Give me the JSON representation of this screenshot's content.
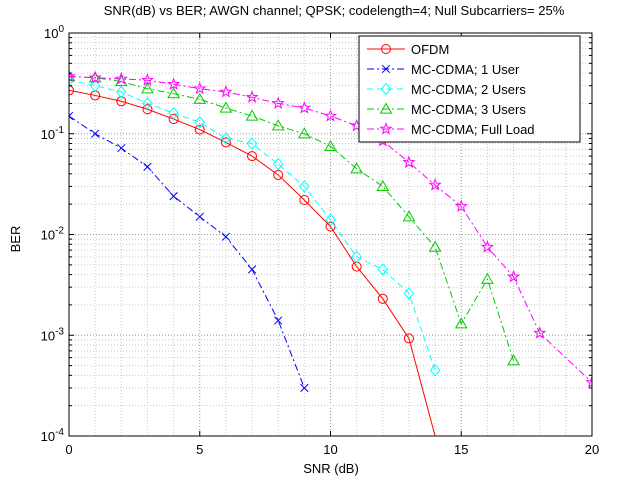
{
  "chart_data": {
    "type": "line",
    "title": "SNR(dB) vs BER; AWGN channel; QPSK; codelength=4; Null Subcarriers= 25%",
    "xlabel": "SNR (dB)",
    "ylabel": "BER",
    "xlim": [
      0,
      20
    ],
    "ylim": [
      0.0001,
      1
    ],
    "yscale": "log",
    "grid": true,
    "legend_position": "top-right",
    "x_ticks": [
      "0",
      "5",
      "10",
      "15",
      "20"
    ],
    "y_tick_bases": [
      "10",
      "10",
      "10",
      "10",
      "10"
    ],
    "y_tick_exponents": [
      "-4",
      "-3",
      "-2",
      "-1",
      "0"
    ],
    "series": [
      {
        "name": "OFDM",
        "color": "#ff0000",
        "dash": "solid",
        "marker": "circle",
        "x": [
          0,
          1,
          2,
          3,
          4,
          5,
          6,
          7,
          8,
          9,
          10,
          11,
          12,
          13,
          14
        ],
        "y": [
          0.27,
          0.24,
          0.21,
          0.175,
          0.14,
          0.11,
          0.082,
          0.06,
          0.039,
          0.022,
          0.012,
          0.0048,
          0.0023,
          0.00093,
          0.0001
        ]
      },
      {
        "name": "MC-CDMA; 1 User",
        "color": "#0000ff",
        "dash": "dashdot",
        "marker": "x",
        "x": [
          0,
          1,
          2,
          3,
          4,
          5,
          6,
          7,
          8,
          9
        ],
        "y": [
          0.15,
          0.1,
          0.072,
          0.047,
          0.024,
          0.015,
          0.0095,
          0.0045,
          0.0014,
          0.0003
        ]
      },
      {
        "name": "MC-CDMA; 2 Users",
        "color": "#00ffff",
        "dash": "dash",
        "marker": "diamond",
        "x": [
          0,
          1,
          2,
          3,
          4,
          5,
          6,
          7,
          8,
          9,
          10,
          11,
          12,
          13,
          14
        ],
        "y": [
          0.34,
          0.3,
          0.26,
          0.2,
          0.16,
          0.13,
          0.09,
          0.08,
          0.05,
          0.03,
          0.014,
          0.006,
          0.0045,
          0.0026,
          0.00045
        ]
      },
      {
        "name": "MC-CDMA; 3 Users",
        "color": "#00cc00",
        "dash": "dashdot",
        "marker": "triangle",
        "x": [
          0,
          1,
          2,
          3,
          4,
          5,
          6,
          7,
          8,
          9,
          10,
          11,
          12,
          13,
          14,
          15,
          16,
          17
        ],
        "y": [
          0.37,
          0.36,
          0.33,
          0.28,
          0.25,
          0.22,
          0.18,
          0.15,
          0.12,
          0.1,
          0.075,
          0.045,
          0.03,
          0.015,
          0.0075,
          0.0013,
          0.0036,
          0.00056
        ]
      },
      {
        "name": "MC-CDMA; Full Load",
        "color": "#ff00ff",
        "dash": "dashdot",
        "marker": "star",
        "x": [
          0,
          1,
          2,
          3,
          4,
          5,
          6,
          7,
          8,
          9,
          10,
          11,
          12,
          13,
          14,
          15,
          16,
          17,
          18,
          20
        ],
        "y": [
          0.37,
          0.36,
          0.35,
          0.34,
          0.31,
          0.28,
          0.26,
          0.23,
          0.2,
          0.18,
          0.15,
          0.12,
          0.085,
          0.052,
          0.031,
          0.019,
          0.0075,
          0.0038,
          0.00105,
          0.00034
        ]
      }
    ]
  }
}
